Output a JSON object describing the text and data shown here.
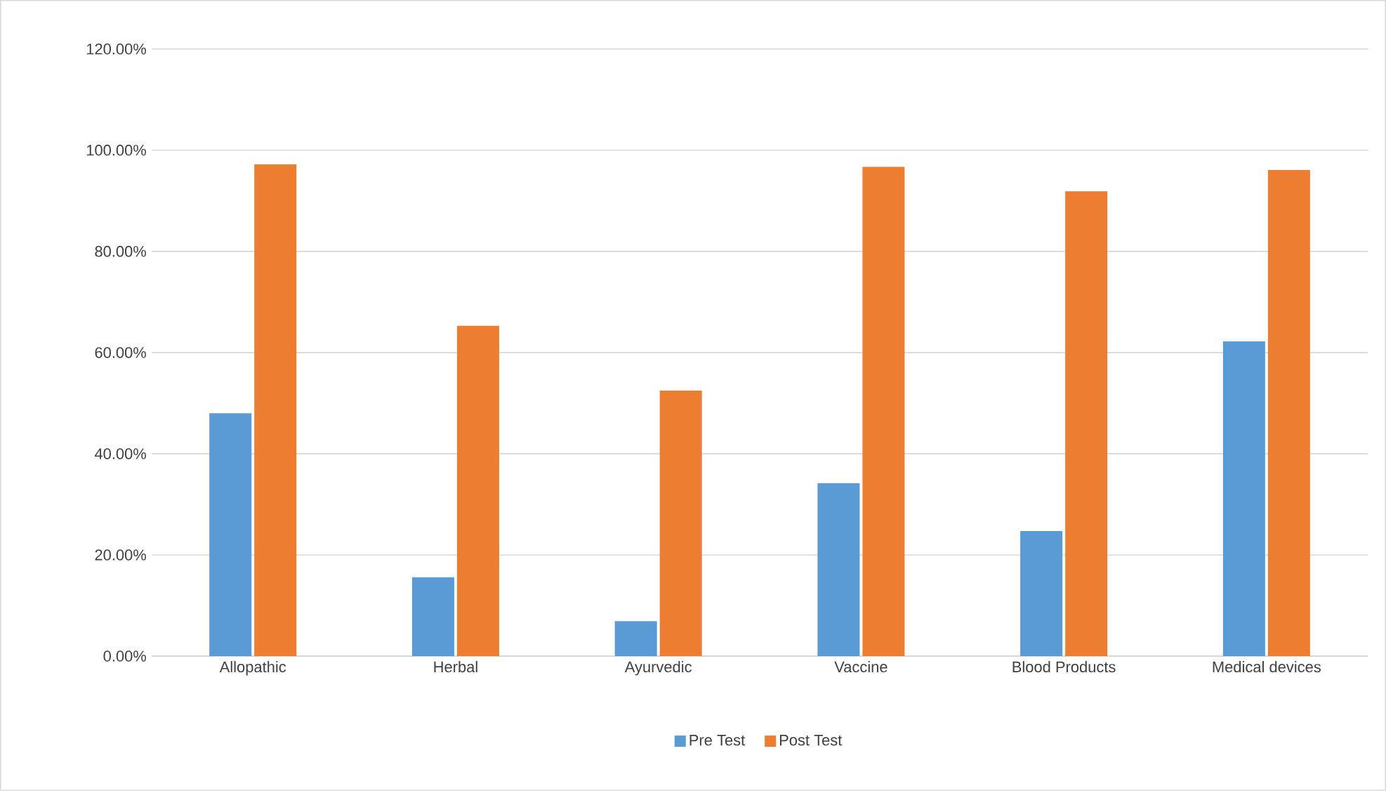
{
  "chart_data": {
    "type": "bar",
    "categories": [
      "Allopathic",
      "Herbal",
      "Ayurvedic",
      "Vaccine",
      "Blood Products",
      "Medical devices"
    ],
    "series": [
      {
        "name": "Pre Test",
        "color": "#5b9bd5",
        "values": [
          48,
          15.6,
          6.9,
          34.2,
          24.7,
          62.2
        ]
      },
      {
        "name": "Post Test",
        "color": "#ed7d31",
        "values": [
          97.2,
          65.3,
          52.5,
          96.7,
          91.9,
          96.1
        ]
      }
    ],
    "ylim": [
      0,
      120
    ],
    "yticks": [
      {
        "value": 0,
        "label": "0.00%"
      },
      {
        "value": 20,
        "label": "20.00%"
      },
      {
        "value": 40,
        "label": "40.00%"
      },
      {
        "value": 60,
        "label": "60.00%"
      },
      {
        "value": 80,
        "label": "80.00%"
      },
      {
        "value": 100,
        "label": "100.00%"
      },
      {
        "value": 120,
        "label": "120.00%"
      }
    ],
    "grid": "y",
    "legend": "bottom"
  }
}
